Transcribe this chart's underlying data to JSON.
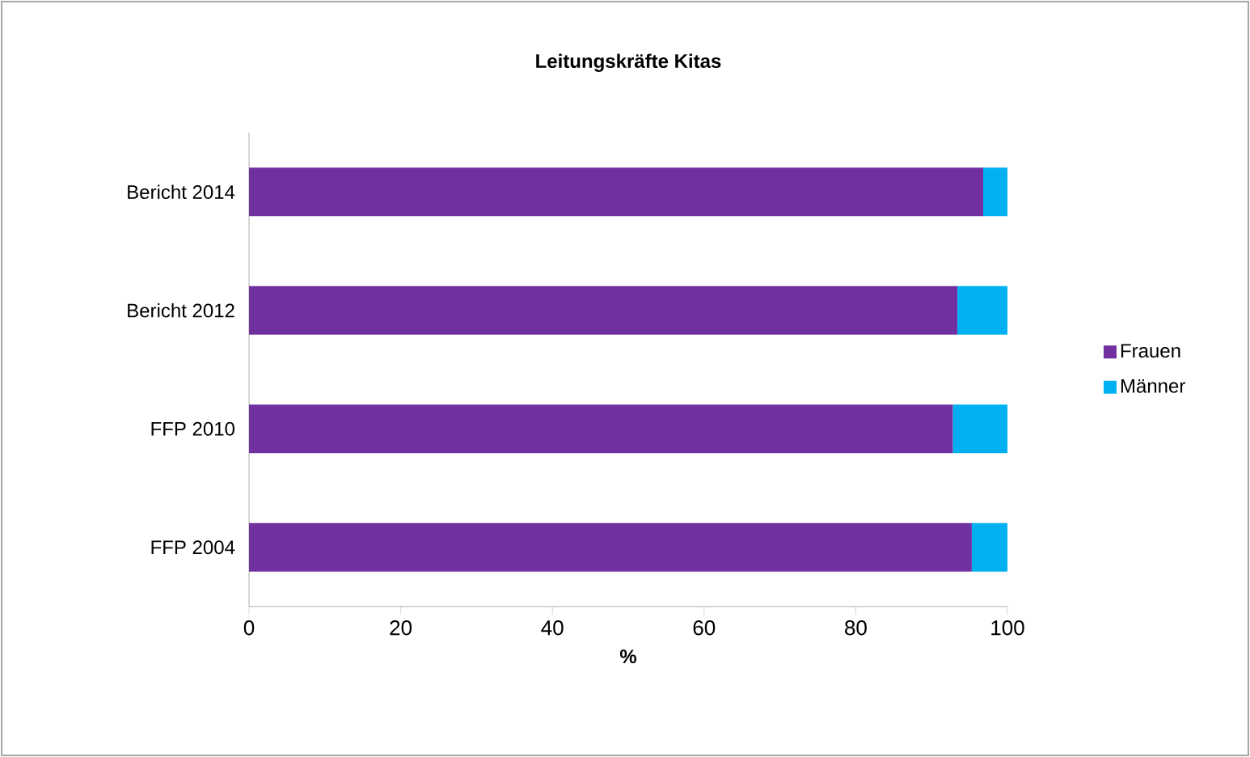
{
  "chart_data": {
    "type": "bar",
    "orientation": "horizontal",
    "stacked": true,
    "title": "Leitungskräfte Kitas",
    "xlabel": "%",
    "categories": [
      "Bericht 2014",
      "Bericht 2012",
      "FFP 2010",
      "FFP 2004"
    ],
    "series": [
      {
        "name": "Frauen",
        "color": "#7030a0",
        "values": [
          96.8,
          93.4,
          92.8,
          95.3
        ]
      },
      {
        "name": "Männer",
        "color": "#00b0f0",
        "values": [
          3.2,
          6.6,
          7.2,
          4.7
        ]
      }
    ],
    "xlim": [
      0,
      100
    ],
    "xticks": [
      0,
      20,
      40,
      60,
      80,
      100
    ],
    "grid": false,
    "legend": "right"
  }
}
